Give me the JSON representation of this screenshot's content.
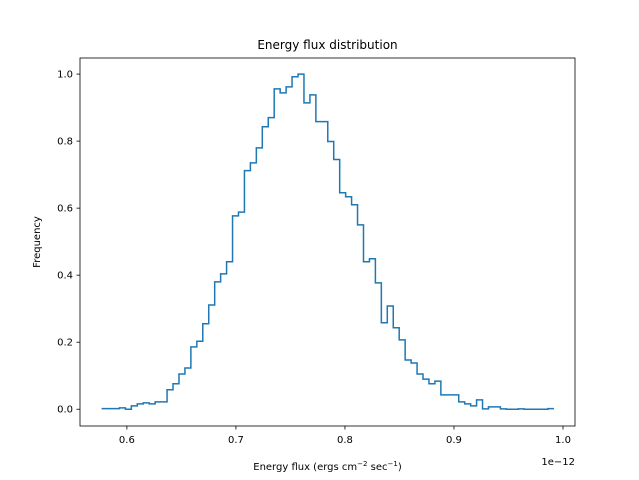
{
  "chart_data": {
    "type": "histogram-step",
    "title": "Energy flux distribution",
    "xlabel": {
      "main": "Energy flux (ergs cm",
      "sup1": "−2",
      "mid": " sec",
      "sup2": "−1",
      "end": ")"
    },
    "ylabel": "Frequency",
    "x_offset_label": "1e−12",
    "xlim": [
      0.557,
      1.011
    ],
    "ylim": [
      -0.05,
      1.048
    ],
    "xticks": [
      "0.6",
      "0.7",
      "0.8",
      "0.9",
      "1.0"
    ],
    "xtick_values": [
      0.6,
      0.7,
      0.8,
      0.9,
      1.0
    ],
    "yticks": [
      "0.0",
      "0.2",
      "0.4",
      "0.6",
      "0.8",
      "1.0"
    ],
    "ytick_values": [
      0.0,
      0.2,
      0.4,
      0.6,
      0.8,
      1.0
    ],
    "grid": false,
    "color": "#1f77b4",
    "bin_range": [
      0.5768,
      0.9917
    ],
    "values": [
      0.002,
      0.002,
      0.002,
      0.004,
      0.0,
      0.01,
      0.016,
      0.019,
      0.016,
      0.022,
      0.022,
      0.058,
      0.076,
      0.105,
      0.123,
      0.186,
      0.203,
      0.255,
      0.311,
      0.38,
      0.404,
      0.44,
      0.577,
      0.588,
      0.712,
      0.735,
      0.78,
      0.843,
      0.87,
      0.956,
      0.944,
      0.962,
      0.992,
      1.0,
      0.914,
      0.938,
      0.858,
      0.858,
      0.799,
      0.745,
      0.646,
      0.634,
      0.61,
      0.55,
      0.44,
      0.449,
      0.377,
      0.258,
      0.308,
      0.243,
      0.207,
      0.147,
      0.138,
      0.105,
      0.09,
      0.076,
      0.084,
      0.043,
      0.043,
      0.043,
      0.022,
      0.016,
      0.01,
      0.028,
      0.001,
      0.007,
      0.007,
      0.001,
      0,
      0,
      0.001,
      0,
      0,
      0,
      0,
      0.002
    ]
  }
}
